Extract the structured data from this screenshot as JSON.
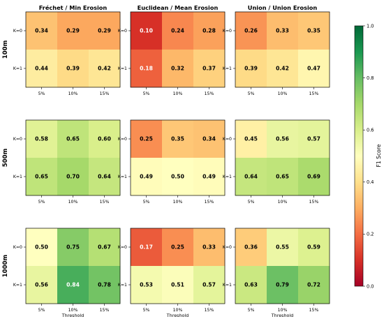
{
  "chart_data": {
    "type": "heatmap",
    "colorbar": {
      "label": "F1 Score",
      "range": [
        0.0,
        1.0
      ],
      "ticks": [
        "0.0",
        "0.2",
        "0.4",
        "0.6",
        "0.8",
        "1.0"
      ],
      "colormap": "RdYlGn"
    },
    "columns": [
      "Fréchet / Min Erosion",
      "Euclidean / Mean Erosion",
      "Union / Union Erosion"
    ],
    "rows": [
      "100m",
      "500m",
      "1000m"
    ],
    "x_ticks": [
      "5%",
      "10%",
      "15%"
    ],
    "y_ticks": [
      "K=0",
      "K=1"
    ],
    "xlabel": "Threshold",
    "panels": [
      [
        {
          "values": [
            [
              0.34,
              0.29,
              0.29
            ],
            [
              0.44,
              0.39,
              0.42
            ]
          ]
        },
        {
          "values": [
            [
              0.1,
              0.24,
              0.28
            ],
            [
              0.18,
              0.32,
              0.37
            ]
          ]
        },
        {
          "values": [
            [
              0.26,
              0.33,
              0.35
            ],
            [
              0.39,
              0.42,
              0.47
            ]
          ]
        }
      ],
      [
        {
          "values": [
            [
              0.58,
              0.65,
              0.6
            ],
            [
              0.65,
              0.7,
              0.64
            ]
          ]
        },
        {
          "values": [
            [
              0.25,
              0.35,
              0.34
            ],
            [
              0.49,
              0.5,
              0.49
            ]
          ]
        },
        {
          "values": [
            [
              0.45,
              0.56,
              0.57
            ],
            [
              0.64,
              0.65,
              0.69
            ]
          ]
        }
      ],
      [
        {
          "values": [
            [
              0.5,
              0.75,
              0.67
            ],
            [
              0.56,
              0.84,
              0.78
            ]
          ]
        },
        {
          "values": [
            [
              0.17,
              0.25,
              0.33
            ],
            [
              0.53,
              0.51,
              0.57
            ]
          ]
        },
        {
          "values": [
            [
              0.36,
              0.55,
              0.59
            ],
            [
              0.63,
              0.79,
              0.72
            ]
          ]
        }
      ]
    ]
  }
}
